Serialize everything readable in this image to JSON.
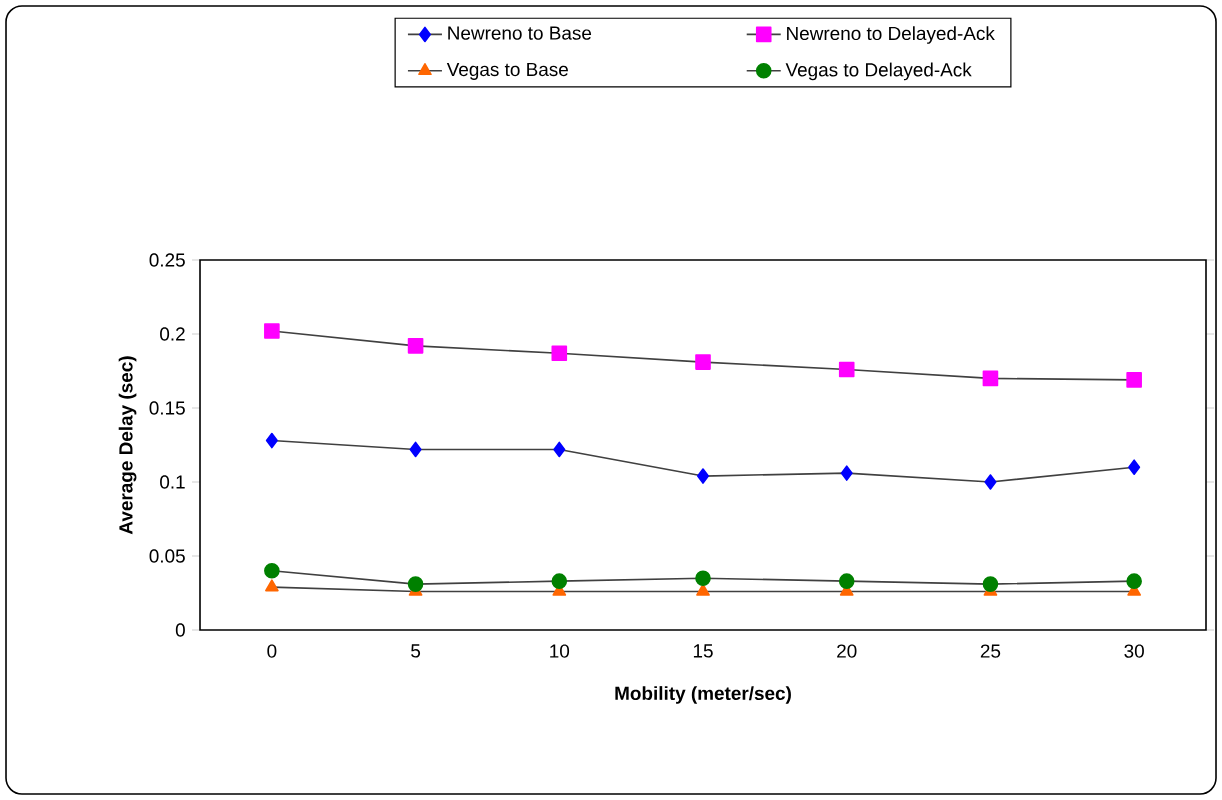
{
  "chart_data": {
    "type": "line",
    "xlabel": "Mobility (meter/sec)",
    "ylabel": "Average Delay (sec)",
    "categories": [
      "0",
      "5",
      "10",
      "15",
      "20",
      "25",
      "30"
    ],
    "series": [
      {
        "name": "Newreno to Base",
        "color": "#0000ff",
        "marker": "diamond",
        "values": [
          0.128,
          0.122,
          0.122,
          0.104,
          0.106,
          0.1,
          0.11
        ]
      },
      {
        "name": "Newreno to Delayed-Ack",
        "color": "#ff00ff",
        "marker": "square",
        "values": [
          0.202,
          0.192,
          0.187,
          0.181,
          0.176,
          0.17,
          0.169
        ]
      },
      {
        "name": "Vegas to Base",
        "color": "#ff6600",
        "marker": "triangle",
        "values": [
          0.029,
          0.026,
          0.026,
          0.026,
          0.026,
          0.026,
          0.026
        ]
      },
      {
        "name": "Vegas to Delayed-Ack",
        "color": "#008000",
        "marker": "circle",
        "values": [
          0.04,
          0.031,
          0.033,
          0.035,
          0.033,
          0.031,
          0.033
        ]
      }
    ],
    "ylim": [
      0,
      0.25
    ],
    "yticks": [
      0,
      0.05,
      0.1,
      0.15,
      0.2,
      0.25
    ],
    "grid": false,
    "legend": "top",
    "line_style": "solid"
  }
}
